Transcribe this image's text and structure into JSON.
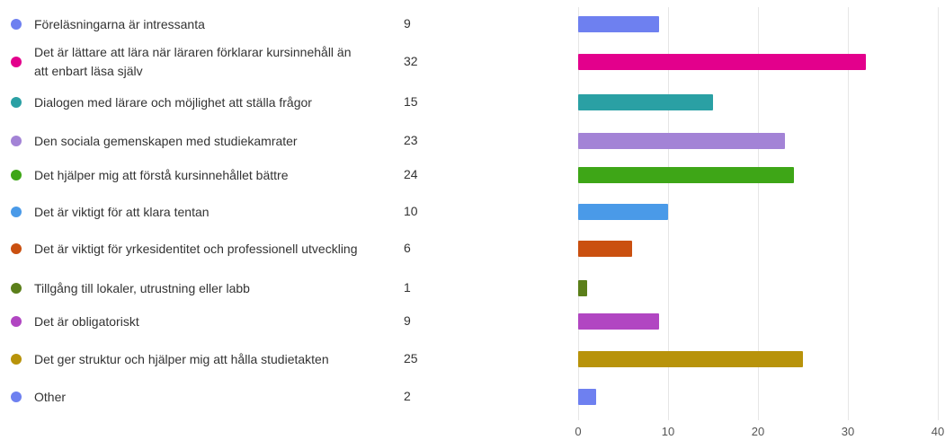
{
  "chart_data": {
    "type": "bar",
    "orientation": "horizontal",
    "categories": [
      "Föreläsningarna är intressanta",
      "Det är lättare att lära när läraren förklarar kursinnehåll än att enbart läsa själv",
      "Dialogen med lärare och möjlighet att ställa frågor",
      "Den sociala gemenskapen med studiekamrater",
      "Det hjälper mig att förstå kursinnehållet bättre",
      "Det är viktigt för att klara tentan",
      "Det är viktigt för yrkesidentitet och professionell utveckling",
      "Tillgång till lokaler, utrustning eller labb",
      "Det är obligatoriskt",
      "Det ger struktur och hjälper mig att hålla studietakten",
      "Other"
    ],
    "values": [
      9,
      32,
      15,
      23,
      24,
      10,
      6,
      1,
      9,
      25,
      2
    ],
    "colors": [
      "#6e80f0",
      "#e3008c",
      "#2aa0a4",
      "#a383d6",
      "#3ea617",
      "#4a9ae8",
      "#ca5010",
      "#5b7f1a",
      "#b146c2",
      "#b8930a",
      "#6e80f0"
    ],
    "xlim": [
      0,
      40
    ],
    "xticks": [
      0,
      10,
      20,
      30,
      40
    ],
    "grid": true
  }
}
